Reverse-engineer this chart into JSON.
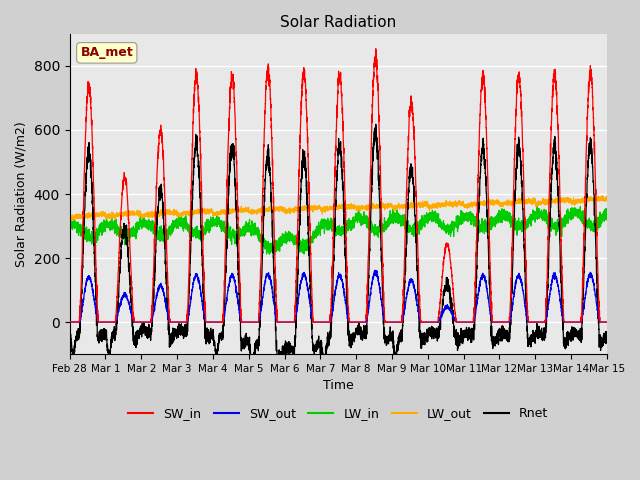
{
  "title": "Solar Radiation",
  "xlabel": "Time",
  "ylabel": "Solar Radiation (W/m2)",
  "ylim": [
    -100,
    900
  ],
  "xlim": [
    0,
    15.0
  ],
  "annotation": "BA_met",
  "annotation_color": "#8b0000",
  "annotation_bg": "#ffffcc",
  "fig_bg": "#d0d0d0",
  "plot_bg": "#e8e8e8",
  "grid_color": "white",
  "series": {
    "SW_in": {
      "color": "#ff0000",
      "lw": 0.9
    },
    "SW_out": {
      "color": "#0000ee",
      "lw": 0.9
    },
    "LW_in": {
      "color": "#00cc00",
      "lw": 0.9
    },
    "LW_out": {
      "color": "#ffaa00",
      "lw": 0.9
    },
    "Rnet": {
      "color": "#000000",
      "lw": 0.9
    }
  },
  "xtick_labels": [
    "Feb 28",
    "Mar 1",
    "Mar 2",
    "Mar 3",
    "Mar 4",
    "Mar 5",
    "Mar 6",
    "Mar 7",
    "Mar 8",
    "Mar 9",
    "Mar 10",
    "Mar 11",
    "Mar 12",
    "Mar 13",
    "Mar 14",
    "Mar 15"
  ],
  "xtick_positions": [
    0,
    1,
    2,
    3,
    4,
    5,
    6,
    7,
    8,
    9,
    10,
    11,
    12,
    13,
    14,
    15
  ],
  "sw_in_peaks": [
    735,
    455,
    600,
    770,
    770,
    790,
    780,
    770,
    825,
    685,
    245,
    770,
    770,
    775,
    780
  ],
  "sw_out_ratio": 0.19,
  "lw_in_base": 295,
  "lw_out_base": 335,
  "pts_per_day": 288,
  "sunrise": 0.27,
  "sunset": 0.8
}
